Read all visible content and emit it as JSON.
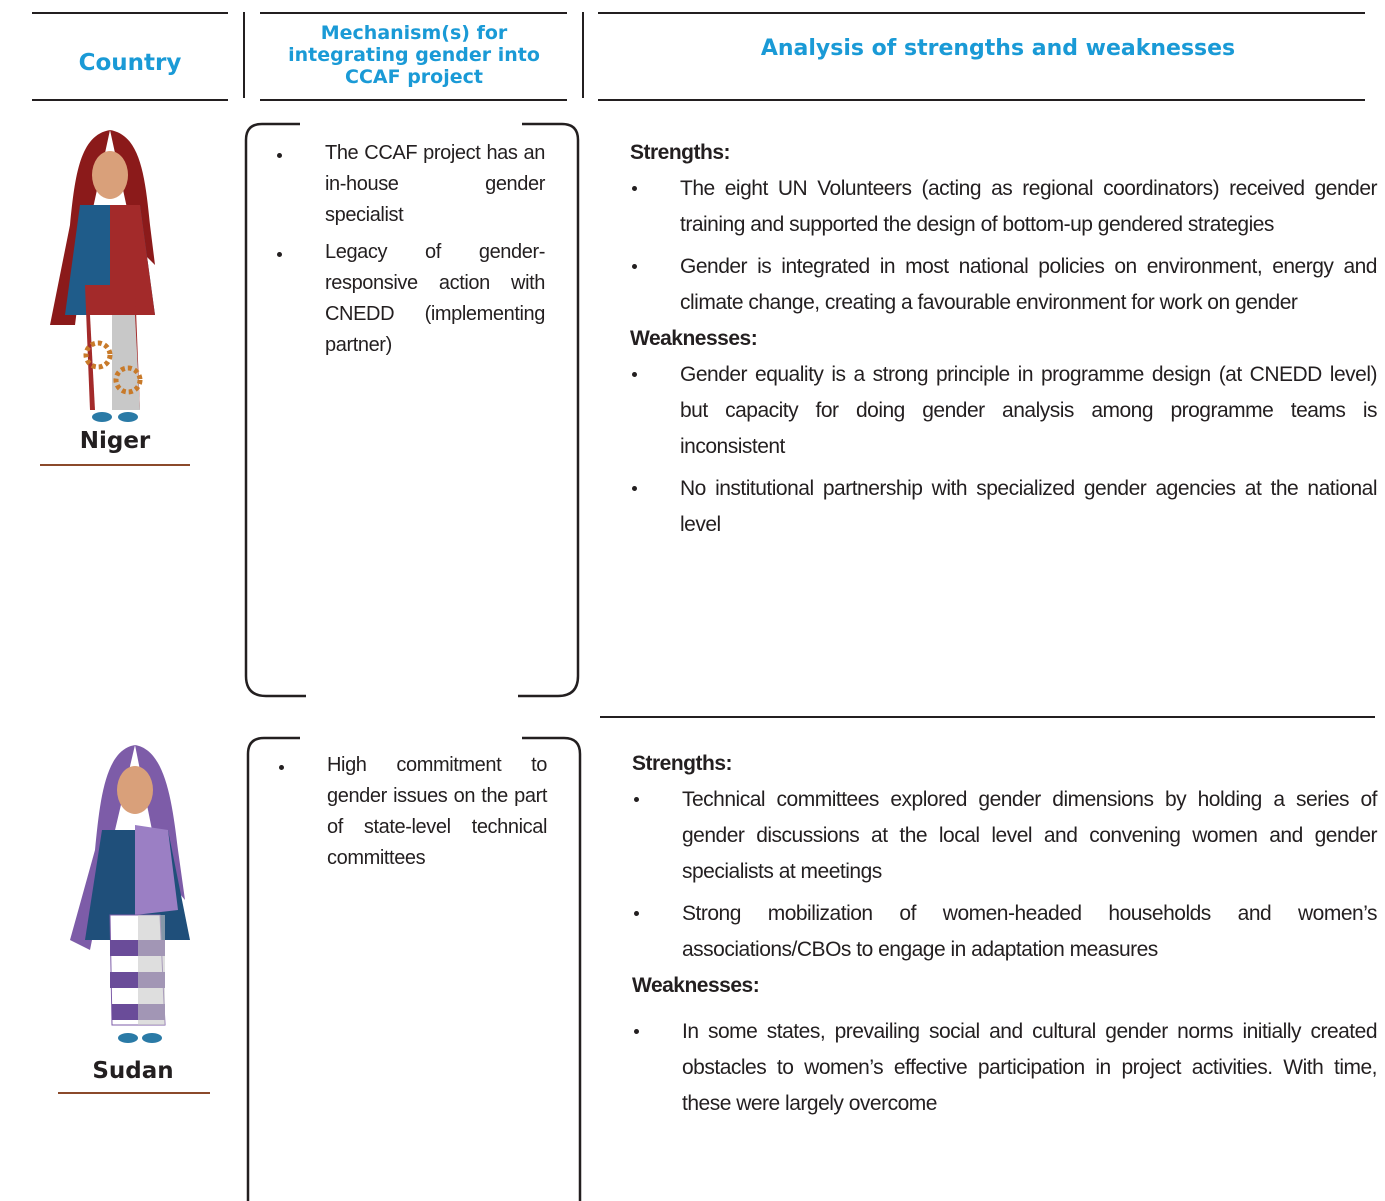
{
  "header": {
    "country": "Country",
    "mechanism": "Mechanism(s) for integrating gender into CCAF project",
    "analysis": "Analysis of strengths and weaknesses"
  },
  "rows": [
    {
      "country": "Niger",
      "mechanisms": [
        "The CCAF project has an in-house gender specialist",
        "Legacy of gender-responsive action with CNEDD (implementing partner)"
      ],
      "strengths_label": "Strengths:",
      "strengths": [
        "The eight UN Volunteers (acting as regional coordinators) received gender training and supported the design of bottom-up gendered strategies",
        "Gender is integrated in most national policies on environment, energy and climate change, creating a favourable environment for work on gender"
      ],
      "weaknesses_label": "Weaknesses:",
      "weaknesses": [
        "Gender equality is a strong principle in programme design (at CNEDD level) but capacity for doing gender analysis among programme teams is inconsistent",
        "No institutional partnership with specialized gender agencies at the national level"
      ]
    },
    {
      "country": "Sudan",
      "mechanisms": [
        "High commitment to gender issues on the part of state-level technical committees"
      ],
      "strengths_label": "Strengths:",
      "strengths": [
        "Technical committees explored gender dimensions by holding a series of gender discussions at the local level and convening women and gender specialists at meetings",
        "Strong mobilization of women-headed households and women’s associations/CBOs to engage in adaptation measures"
      ],
      "weaknesses_label": "Weaknesses:",
      "weaknesses": [
        "In some states, prevailing social and cultural gender norms initially created obstacles to women’s effective participation in project activities. With time, these were largely overcome"
      ]
    }
  ]
}
